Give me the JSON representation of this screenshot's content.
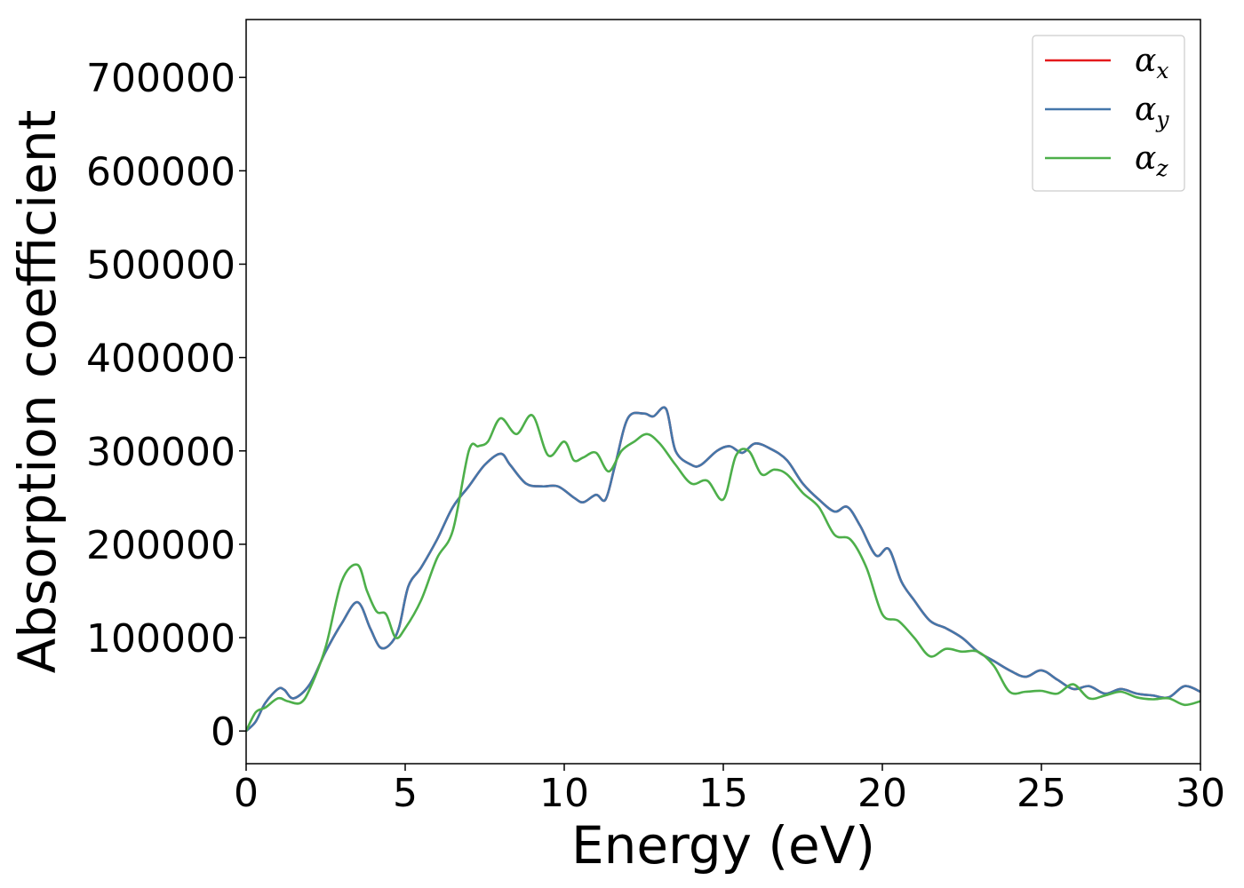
{
  "chart_data": {
    "type": "line",
    "title": "",
    "xlabel": "Energy (eV)",
    "ylabel": "Absorption coefficient",
    "xlim": [
      0,
      30
    ],
    "ylim": [
      -35000,
      762000
    ],
    "xticks": [
      0,
      5,
      10,
      15,
      20,
      25,
      30
    ],
    "yticks": [
      0,
      100000,
      200000,
      300000,
      400000,
      500000,
      600000,
      700000
    ],
    "grid": false,
    "legend": "top-right",
    "series": [
      {
        "name": "α",
        "sub": "x",
        "color": "#e41a1c",
        "x": [
          0,
          0.3,
          0.6,
          1.0,
          1.2,
          1.5,
          2.0,
          2.5,
          3.0,
          3.5,
          3.9,
          4.2,
          4.5,
          4.8,
          5.1,
          5.5,
          6.0,
          6.5,
          7.0,
          7.5,
          8.0,
          8.3,
          8.8,
          9.3,
          9.8,
          10.3,
          10.6,
          11.0,
          11.3,
          11.6,
          12.0,
          12.5,
          12.8,
          13.2,
          13.5,
          14.0,
          14.3,
          14.8,
          15.2,
          15.6,
          16.0,
          16.5,
          17.0,
          17.5,
          18.0,
          18.5,
          18.9,
          19.3,
          19.8,
          20.2,
          20.6,
          21.0,
          21.5,
          22.0,
          22.5,
          23.0,
          23.5,
          24.0,
          24.5,
          25.0,
          25.5,
          26.0,
          26.5,
          27.0,
          27.5,
          28.0,
          28.5,
          29.0,
          29.5,
          30.0
        ],
        "y": [
          0,
          10000,
          30000,
          45000,
          44000,
          35000,
          50000,
          85000,
          115000,
          138000,
          110000,
          90000,
          92000,
          110000,
          155000,
          175000,
          205000,
          240000,
          262000,
          285000,
          297000,
          285000,
          265000,
          262000,
          262000,
          250000,
          245000,
          253000,
          248000,
          285000,
          335000,
          340000,
          337000,
          345000,
          300000,
          285000,
          285000,
          300000,
          305000,
          298000,
          308000,
          302000,
          290000,
          265000,
          248000,
          235000,
          240000,
          220000,
          188000,
          195000,
          160000,
          140000,
          118000,
          110000,
          100000,
          85000,
          75000,
          65000,
          58000,
          65000,
          55000,
          45000,
          48000,
          40000,
          45000,
          40000,
          38000,
          36000,
          48000,
          42000
        ]
      },
      {
        "name": "α",
        "sub": "y",
        "color": "#4477aa",
        "x": [
          0,
          0.3,
          0.6,
          1.0,
          1.2,
          1.5,
          2.0,
          2.5,
          3.0,
          3.5,
          3.9,
          4.2,
          4.5,
          4.8,
          5.1,
          5.5,
          6.0,
          6.5,
          7.0,
          7.5,
          8.0,
          8.3,
          8.8,
          9.3,
          9.8,
          10.3,
          10.6,
          11.0,
          11.3,
          11.6,
          12.0,
          12.5,
          12.8,
          13.2,
          13.5,
          14.0,
          14.3,
          14.8,
          15.2,
          15.6,
          16.0,
          16.5,
          17.0,
          17.5,
          18.0,
          18.5,
          18.9,
          19.3,
          19.8,
          20.2,
          20.6,
          21.0,
          21.5,
          22.0,
          22.5,
          23.0,
          23.5,
          24.0,
          24.5,
          25.0,
          25.5,
          26.0,
          26.5,
          27.0,
          27.5,
          28.0,
          28.5,
          29.0,
          29.5,
          30.0
        ],
        "y": [
          0,
          10000,
          30000,
          45000,
          44000,
          35000,
          50000,
          85000,
          115000,
          138000,
          110000,
          90000,
          92000,
          110000,
          155000,
          175000,
          205000,
          240000,
          262000,
          285000,
          297000,
          285000,
          265000,
          262000,
          262000,
          250000,
          245000,
          253000,
          248000,
          285000,
          335000,
          340000,
          337000,
          345000,
          300000,
          285000,
          285000,
          300000,
          305000,
          298000,
          308000,
          302000,
          290000,
          265000,
          248000,
          235000,
          240000,
          220000,
          188000,
          195000,
          160000,
          140000,
          118000,
          110000,
          100000,
          85000,
          75000,
          65000,
          58000,
          65000,
          55000,
          45000,
          48000,
          40000,
          45000,
          40000,
          38000,
          36000,
          48000,
          42000
        ]
      },
      {
        "name": "α",
        "sub": "z",
        "color": "#4daf4a",
        "x": [
          0,
          0.3,
          0.6,
          1.0,
          1.3,
          1.7,
          2.0,
          2.5,
          3.0,
          3.5,
          3.8,
          4.1,
          4.4,
          4.7,
          5.0,
          5.5,
          6.0,
          6.5,
          7.0,
          7.3,
          7.6,
          8.0,
          8.5,
          9.0,
          9.5,
          10.0,
          10.3,
          10.6,
          11.0,
          11.4,
          11.8,
          12.2,
          12.6,
          13.0,
          13.5,
          14.0,
          14.5,
          15.0,
          15.4,
          15.8,
          16.2,
          16.6,
          17.0,
          17.5,
          18.0,
          18.5,
          19.0,
          19.5,
          20.0,
          20.5,
          21.0,
          21.5,
          22.0,
          22.5,
          23.0,
          23.5,
          24.0,
          24.5,
          25.0,
          25.5,
          26.0,
          26.5,
          27.0,
          27.5,
          28.0,
          28.5,
          29.0,
          29.5,
          30.0
        ],
        "y": [
          0,
          20000,
          25000,
          35000,
          32000,
          30000,
          45000,
          90000,
          160000,
          178000,
          150000,
          128000,
          125000,
          100000,
          110000,
          140000,
          185000,
          215000,
          300000,
          305000,
          310000,
          335000,
          318000,
          338000,
          295000,
          310000,
          290000,
          293000,
          298000,
          278000,
          300000,
          310000,
          318000,
          308000,
          285000,
          265000,
          268000,
          248000,
          295000,
          300000,
          275000,
          280000,
          275000,
          255000,
          240000,
          210000,
          205000,
          175000,
          125000,
          118000,
          100000,
          80000,
          88000,
          85000,
          85000,
          70000,
          42000,
          42000,
          43000,
          40000,
          50000,
          35000,
          38000,
          42000,
          36000,
          34000,
          35000,
          28000,
          32000
        ]
      }
    ]
  }
}
